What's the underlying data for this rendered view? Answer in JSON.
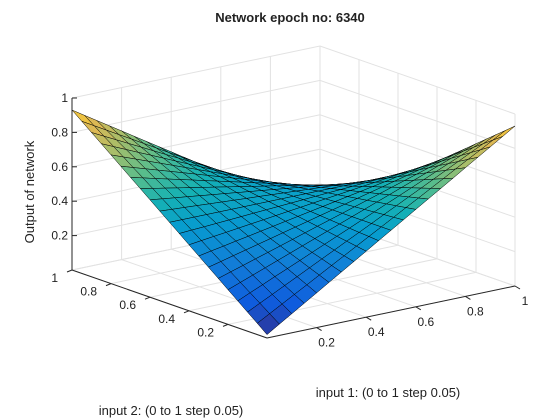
{
  "chart_data": {
    "type": "surface",
    "title": "Network epoch no: 6340",
    "xlabel": "input 1: (0 to 1 step 0.05)",
    "ylabel": "input 2: (0 to 1 step 0.05)",
    "zlabel": "Output of network",
    "x_range": [
      0,
      1
    ],
    "y_range": [
      0,
      1
    ],
    "z_range": [
      0,
      1
    ],
    "x_step": 0.05,
    "y_step": 0.05,
    "x_ticks": [
      "0.2",
      "0.4",
      "0.6",
      "0.8",
      "1"
    ],
    "y_ticks": [
      "0.2",
      "0.4",
      "0.6",
      "0.8",
      "1"
    ],
    "z_ticks": [
      "0.2",
      "0.4",
      "0.6",
      "0.8",
      "1"
    ],
    "corner_values": {
      "x0_y0": 0.02,
      "x1_y0": 0.93,
      "x0_y1": 0.93,
      "x1_y1": 0.02
    },
    "colormap": "parula",
    "grid": true
  }
}
